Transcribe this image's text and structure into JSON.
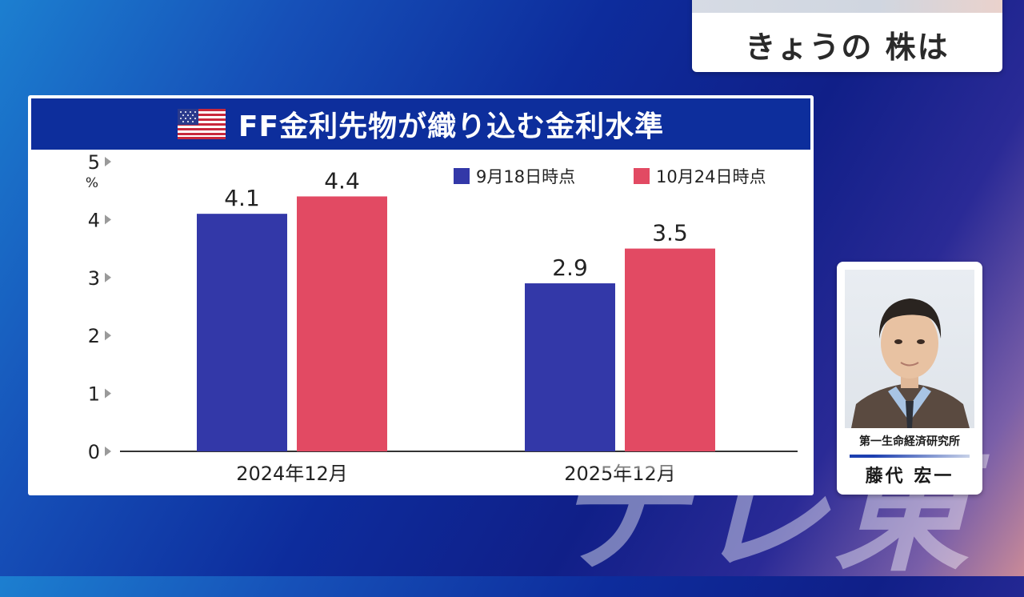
{
  "segment": {
    "title": "きょうの 株は"
  },
  "panel": {
    "title": "FF金利先物が織り込む金利水準",
    "flag_icon": "us-flag-icon"
  },
  "chart_data": {
    "type": "bar",
    "title": "FF金利先物が織り込む金利水準",
    "unit": "%",
    "categories": [
      "2024年12月",
      "2025年12月"
    ],
    "series": [
      {
        "name": "9月18日時点",
        "values": [
          4.1,
          2.9
        ],
        "color": "#3338a8"
      },
      {
        "name": "10月24日時点",
        "values": [
          4.4,
          3.5
        ],
        "color": "#e24a63"
      }
    ],
    "value_labels": [
      [
        "4.1",
        "2.9"
      ],
      [
        "4.4",
        "3.5"
      ]
    ],
    "ylim": [
      0,
      5
    ],
    "y_ticks": [
      "0",
      "1",
      "2",
      "3",
      "4",
      "5"
    ],
    "legend_position": "top-right",
    "grid": false
  },
  "watermark": "テレ東",
  "person": {
    "organization": "第一生命経済研究所",
    "name": "藤代 宏一"
  }
}
